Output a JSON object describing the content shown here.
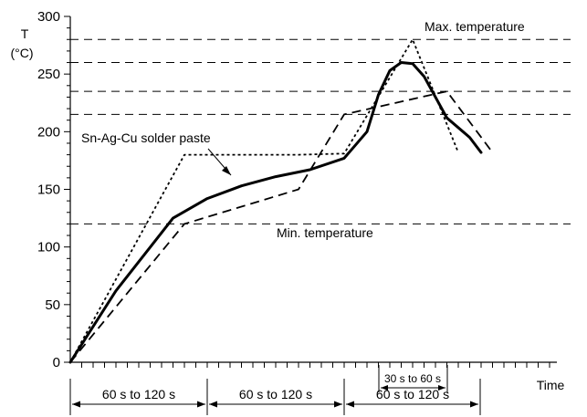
{
  "chart_data": {
    "type": "line",
    "title": "",
    "xlabel": "Time",
    "ylabel": "T",
    "yunit": "(°C)",
    "ylim": [
      0,
      300
    ],
    "yticks": [
      0,
      50,
      100,
      150,
      200,
      250,
      300
    ],
    "grid": false,
    "x_unit": "seconds (approximate, not printed)",
    "reference_lines": [
      {
        "name": "Max. temperature",
        "y": 280,
        "style": "dashed"
      },
      {
        "name": "",
        "y": 260,
        "style": "dashed"
      },
      {
        "name": "",
        "y": 235,
        "style": "dashed"
      },
      {
        "name": "",
        "y": 215,
        "style": "dashed"
      },
      {
        "name": "Min. temperature",
        "y": 120,
        "style": "dashed"
      }
    ],
    "series": [
      {
        "style": "solid-thick",
        "x": [
          0,
          40,
          90,
          120,
          150,
          180,
          210,
          240,
          260,
          270,
          280,
          290,
          300,
          310,
          330,
          350,
          360
        ],
        "y": [
          0,
          62,
          125,
          142,
          153,
          161,
          167,
          177,
          200,
          232,
          253,
          260,
          259,
          248,
          212,
          195,
          182
        ]
      },
      {
        "style": "dotted",
        "x": [
          0,
          100,
          200,
          240,
          300,
          340
        ],
        "y": [
          0,
          180,
          180,
          181,
          280,
          182
        ]
      },
      {
        "style": "dashed",
        "x": [
          0,
          100,
          200,
          240,
          330,
          370
        ],
        "y": [
          0,
          120,
          150,
          215,
          235,
          182
        ]
      }
    ],
    "annotations": [
      {
        "text": "Sn-Ag-Cu solder paste"
      }
    ],
    "time_intervals": [
      {
        "label": "60 s to 120 s"
      },
      {
        "label": "60 s to 120 s"
      },
      {
        "label": "60 s to 120 s"
      },
      {
        "label": "30 s to 60 s"
      }
    ]
  }
}
